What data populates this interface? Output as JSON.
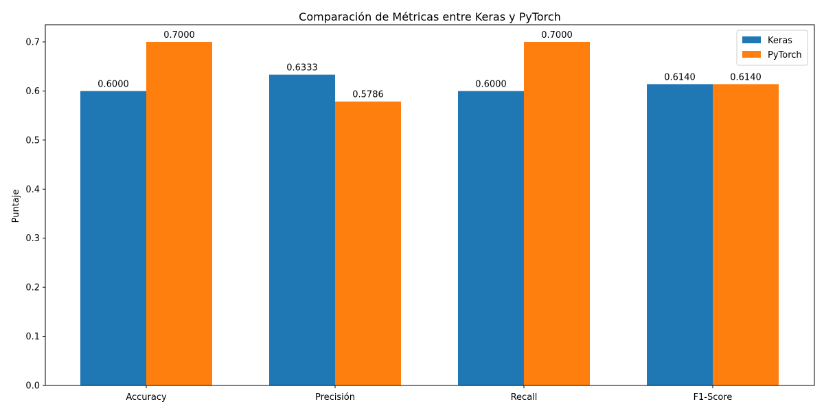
{
  "chart_data": {
    "type": "bar",
    "title": "Comparación de Métricas entre Keras y PyTorch",
    "xlabel": "",
    "ylabel": "Puntaje",
    "categories": [
      "Accuracy",
      "Precisión",
      "Recall",
      "F1-Score"
    ],
    "series": [
      {
        "name": "Keras",
        "color": "#1f77b4",
        "values": [
          0.6,
          0.6333,
          0.6,
          0.614
        ],
        "labels": [
          "0.6000",
          "0.6333",
          "0.6000",
          "0.6140"
        ]
      },
      {
        "name": "PyTorch",
        "color": "#ff7f0e",
        "values": [
          0.7,
          0.5786,
          0.7,
          0.614
        ],
        "labels": [
          "0.7000",
          "0.5786",
          "0.7000",
          "0.6140"
        ]
      }
    ],
    "ylim": [
      0,
      0.735
    ],
    "yticks": [
      0.0,
      0.1,
      0.2,
      0.3,
      0.4,
      0.5,
      0.6,
      0.7
    ],
    "ytick_labels": [
      "0.0",
      "0.1",
      "0.2",
      "0.3",
      "0.4",
      "0.5",
      "0.6",
      "0.7"
    ],
    "grid": false,
    "legend": "top-right"
  }
}
